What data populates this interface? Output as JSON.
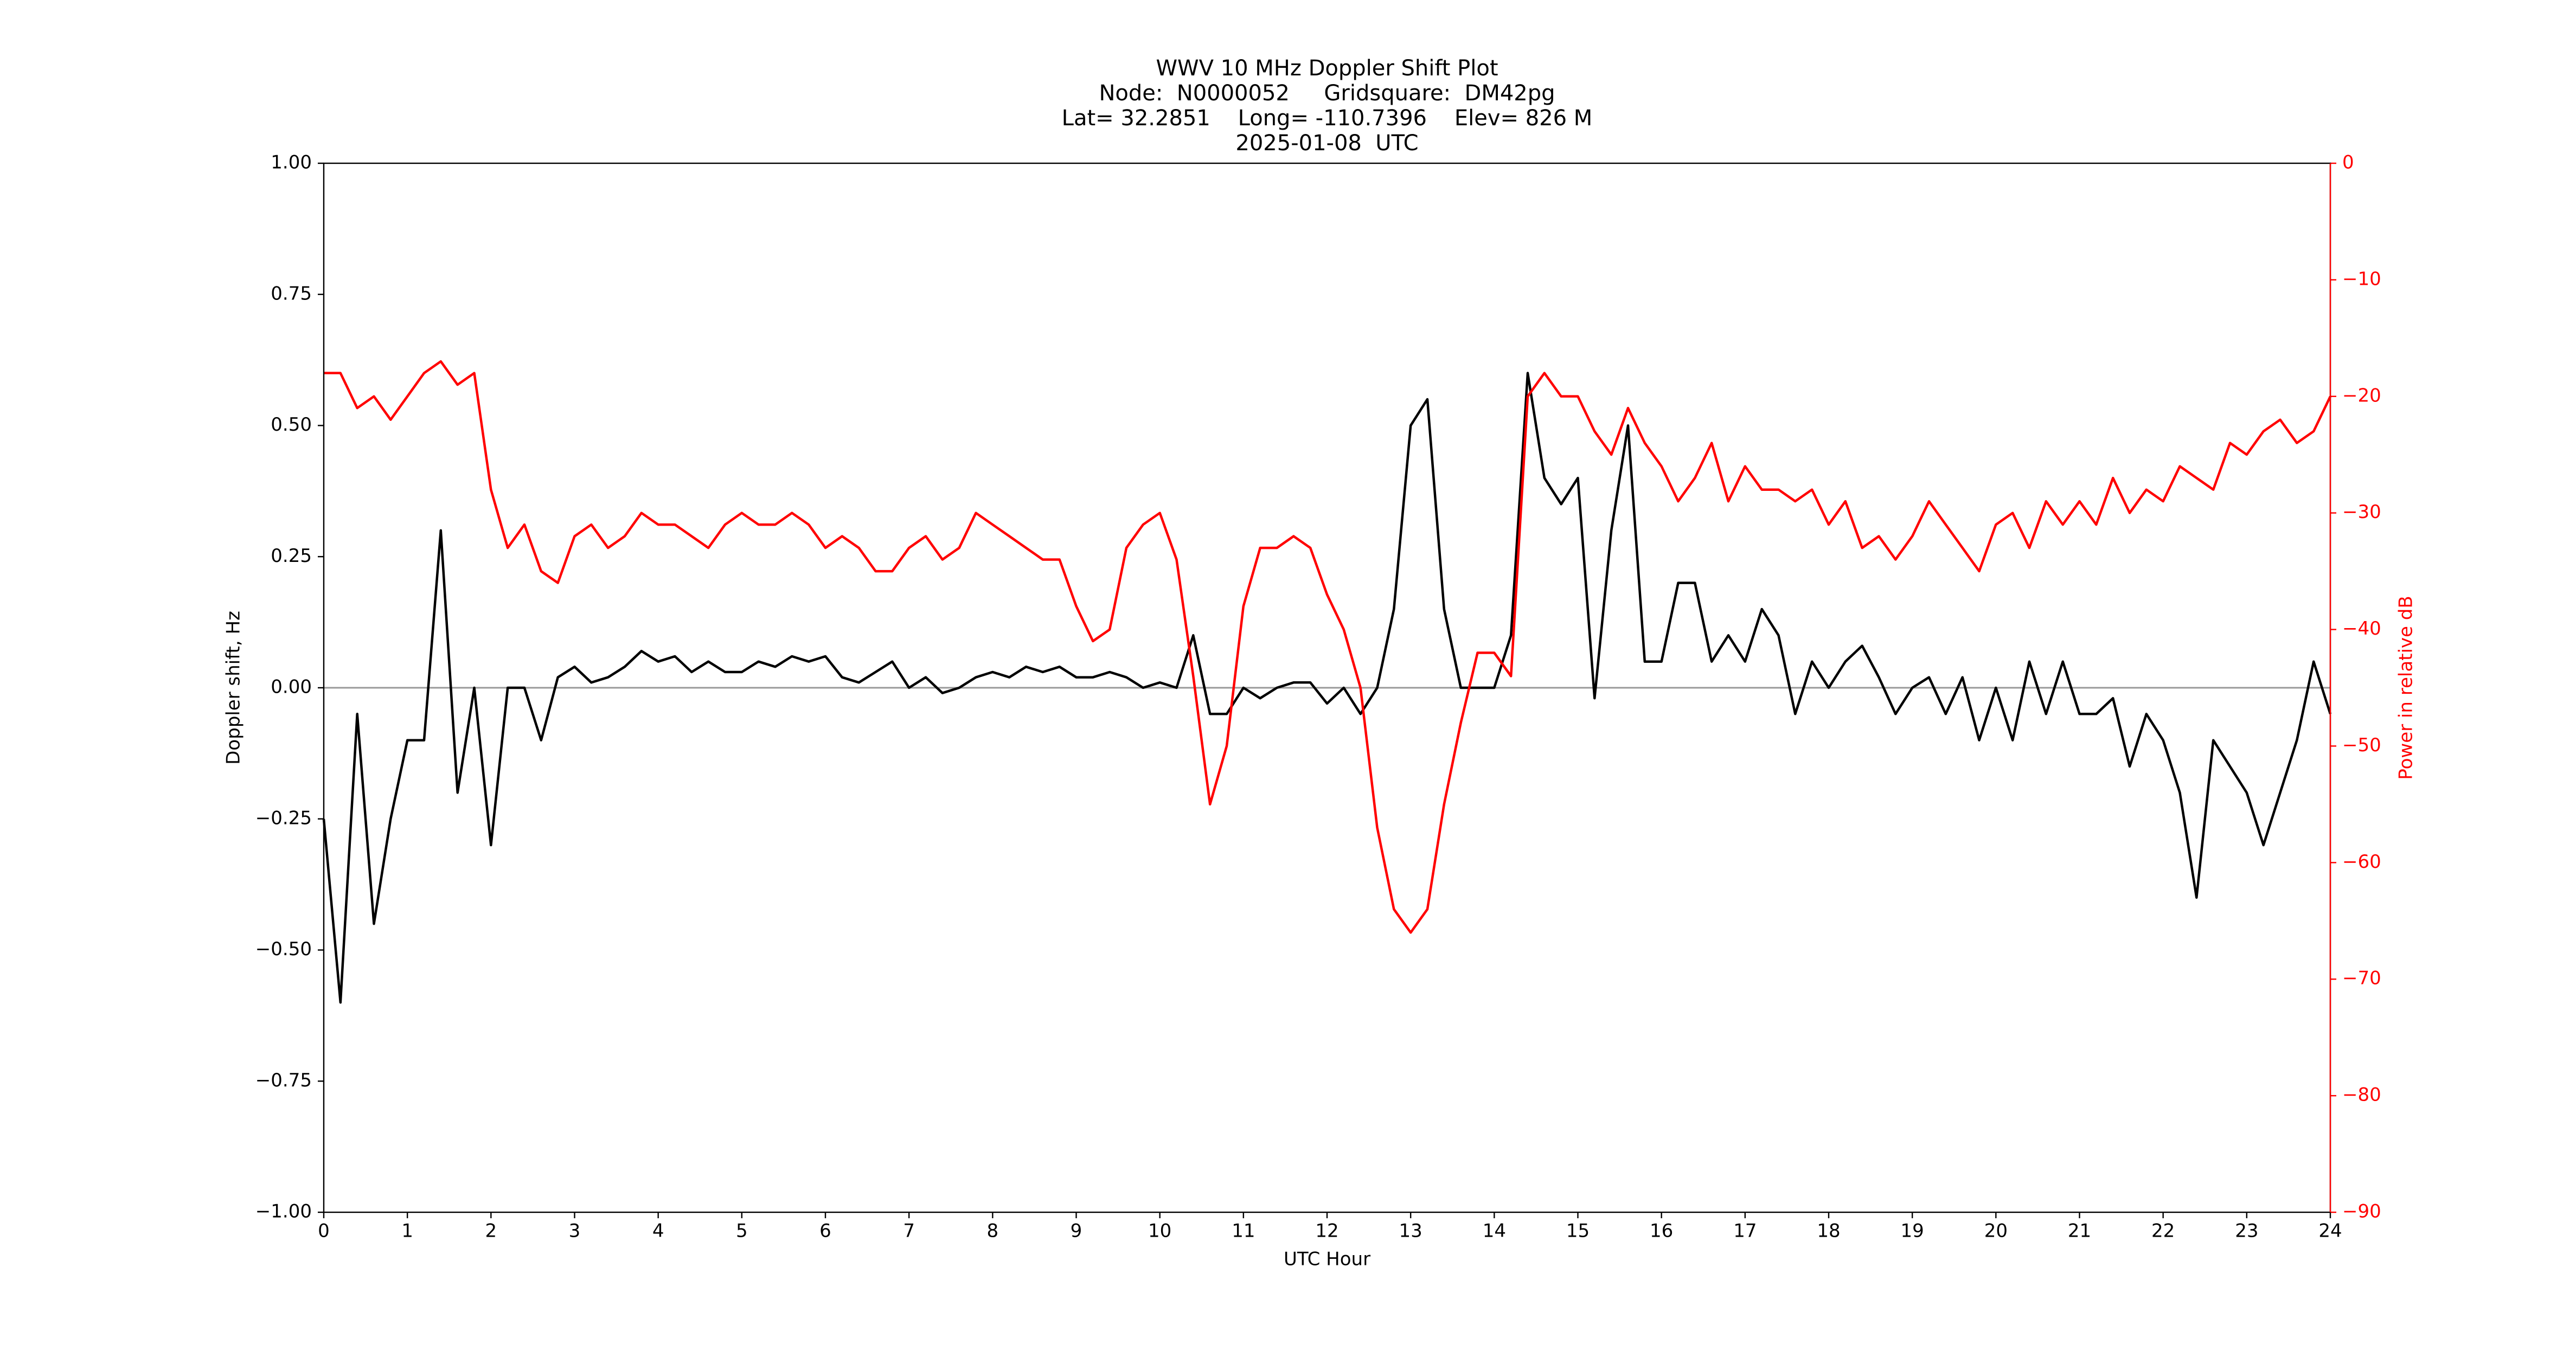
{
  "chart_data": {
    "type": "line",
    "title": [
      "WWV 10 MHz Doppler Shift Plot",
      "Node:  N0000052     Gridsquare:  DM42pg",
      "Lat= 32.2851    Long= -110.7396    Elev= 826 M",
      "2025-01-08  UTC"
    ],
    "xlabel": "UTC Hour",
    "ylabel": "Doppler shift, Hz",
    "y2label": "Power in relative dB",
    "y2color": "#ff0000",
    "x": [
      0,
      0.2,
      0.4,
      0.6,
      0.8,
      1,
      1.2,
      1.4,
      1.6,
      1.8,
      2,
      2.2,
      2.4,
      2.6,
      2.8,
      3,
      3.2,
      3.4,
      3.6,
      3.8,
      4,
      4.2,
      4.4,
      4.6,
      4.8,
      5,
      5.2,
      5.4,
      5.6,
      5.8,
      6,
      6.2,
      6.4,
      6.6,
      6.8,
      7,
      7.2,
      7.4,
      7.6,
      7.8,
      8,
      8.2,
      8.4,
      8.6,
      8.8,
      9,
      9.2,
      9.4,
      9.6,
      9.8,
      10,
      10.2,
      10.4,
      10.6,
      10.8,
      11,
      11.2,
      11.4,
      11.6,
      11.8,
      12,
      12.2,
      12.4,
      12.6,
      12.8,
      13,
      13.2,
      13.4,
      13.6,
      13.8,
      14,
      14.2,
      14.4,
      14.6,
      14.8,
      15,
      15.2,
      15.4,
      15.6,
      15.8,
      16,
      16.2,
      16.4,
      16.6,
      16.8,
      17,
      17.2,
      17.4,
      17.6,
      17.8,
      18,
      18.2,
      18.4,
      18.6,
      18.8,
      19,
      19.2,
      19.4,
      19.6,
      19.8,
      20,
      20.2,
      20.4,
      20.6,
      20.8,
      21,
      21.2,
      21.4,
      21.6,
      21.8,
      22,
      22.2,
      22.4,
      22.6,
      22.8,
      23,
      23.2,
      23.4,
      23.6,
      23.8,
      24
    ],
    "series": [
      {
        "color": "#000000",
        "values": [
          -0.25,
          -0.6,
          -0.05,
          -0.45,
          -0.25,
          -0.1,
          -0.1,
          0.3,
          -0.2,
          0.0,
          -0.3,
          0.0,
          0.0,
          -0.1,
          0.02,
          0.04,
          0.01,
          0.02,
          0.04,
          0.07,
          0.05,
          0.06,
          0.03,
          0.05,
          0.03,
          0.03,
          0.05,
          0.04,
          0.06,
          0.05,
          0.06,
          0.02,
          0.01,
          0.03,
          0.05,
          0.0,
          0.02,
          -0.01,
          0.0,
          0.02,
          0.03,
          0.02,
          0.04,
          0.03,
          0.04,
          0.02,
          0.02,
          0.03,
          0.02,
          0.0,
          0.01,
          0.0,
          0.1,
          -0.05,
          -0.05,
          0.0,
          -0.02,
          0.0,
          0.01,
          0.01,
          -0.03,
          0.0,
          -0.05,
          0.0,
          0.15,
          0.5,
          0.55,
          0.15,
          0.0,
          0.0,
          0.0,
          0.1,
          0.6,
          0.4,
          0.35,
          0.4,
          -0.02,
          0.3,
          0.5,
          0.05,
          0.05,
          0.2,
          0.2,
          0.05,
          0.1,
          0.05,
          0.15,
          0.1,
          -0.05,
          0.05,
          0.0,
          0.05,
          0.08,
          0.02,
          -0.05,
          0.0,
          0.02,
          -0.05,
          0.02,
          -0.1,
          0.0,
          -0.1,
          0.05,
          -0.05,
          0.05,
          -0.05,
          -0.05,
          -0.02,
          -0.15,
          -0.05,
          -0.1,
          -0.2,
          -0.4,
          -0.1,
          -0.15,
          -0.2,
          -0.3,
          -0.2,
          -0.1,
          0.05,
          -0.05
        ]
      },
      {
        "color": "#ff0000",
        "axis": "y2",
        "values": [
          -18,
          -18,
          -21,
          -20,
          -22,
          -20,
          -18,
          -17,
          -19,
          -18,
          -28,
          -33,
          -31,
          -35,
          -36,
          -32,
          -31,
          -33,
          -32,
          -30,
          -31,
          -31,
          -32,
          -33,
          -31,
          -30,
          -31,
          -31,
          -30,
          -31,
          -33,
          -32,
          -33,
          -35,
          -35,
          -33,
          -32,
          -34,
          -33,
          -30,
          -31,
          -32,
          -33,
          -34,
          -34,
          -38,
          -41,
          -40,
          -33,
          -31,
          -30,
          -34,
          -44,
          -55,
          -50,
          -38,
          -33,
          -33,
          -32,
          -33,
          -37,
          -40,
          -45,
          -57,
          -64,
          -66,
          -64,
          -55,
          -48,
          -42,
          -42,
          -44,
          -20,
          -18,
          -20,
          -20,
          -23,
          -25,
          -21,
          -24,
          -26,
          -29,
          -27,
          -24,
          -29,
          -26,
          -28,
          -28,
          -29,
          -28,
          -31,
          -29,
          -33,
          -32,
          -34,
          -32,
          -29,
          -31,
          -33,
          -35,
          -31,
          -30,
          -33,
          -29,
          -31,
          -29,
          -31,
          -27,
          -30,
          -28,
          -29,
          -26,
          -27,
          -28,
          -24,
          -25,
          -23,
          -22,
          -24,
          -23,
          -20
        ]
      }
    ],
    "xlim": [
      0,
      24
    ],
    "xticks": [
      0,
      1,
      2,
      3,
      4,
      5,
      6,
      7,
      8,
      9,
      10,
      11,
      12,
      13,
      14,
      15,
      16,
      17,
      18,
      19,
      20,
      21,
      22,
      23,
      24
    ],
    "ylim": [
      -1,
      1
    ],
    "yticks": [
      {
        "value": -1,
        "label": "−1.00"
      },
      {
        "value": -0.75,
        "label": "−0.75"
      },
      {
        "value": -0.5,
        "label": "−0.50"
      },
      {
        "value": -0.25,
        "label": "−0.25"
      },
      {
        "value": 0,
        "label": "0.00"
      },
      {
        "value": 0.25,
        "label": "0.25"
      },
      {
        "value": 0.5,
        "label": "0.50"
      },
      {
        "value": 0.75,
        "label": "0.75"
      },
      {
        "value": 1,
        "label": "1.00"
      }
    ],
    "y2lim": [
      -90,
      0
    ],
    "y2ticks": [
      {
        "value": -90,
        "label": "−90"
      },
      {
        "value": -80,
        "label": "−80"
      },
      {
        "value": -70,
        "label": "−70"
      },
      {
        "value": -60,
        "label": "−60"
      },
      {
        "value": -50,
        "label": "−50"
      },
      {
        "value": -40,
        "label": "−40"
      },
      {
        "value": -30,
        "label": "−30"
      },
      {
        "value": -20,
        "label": "−20"
      },
      {
        "value": -10,
        "label": "−10"
      },
      0
    ],
    "zero_line": true
  }
}
